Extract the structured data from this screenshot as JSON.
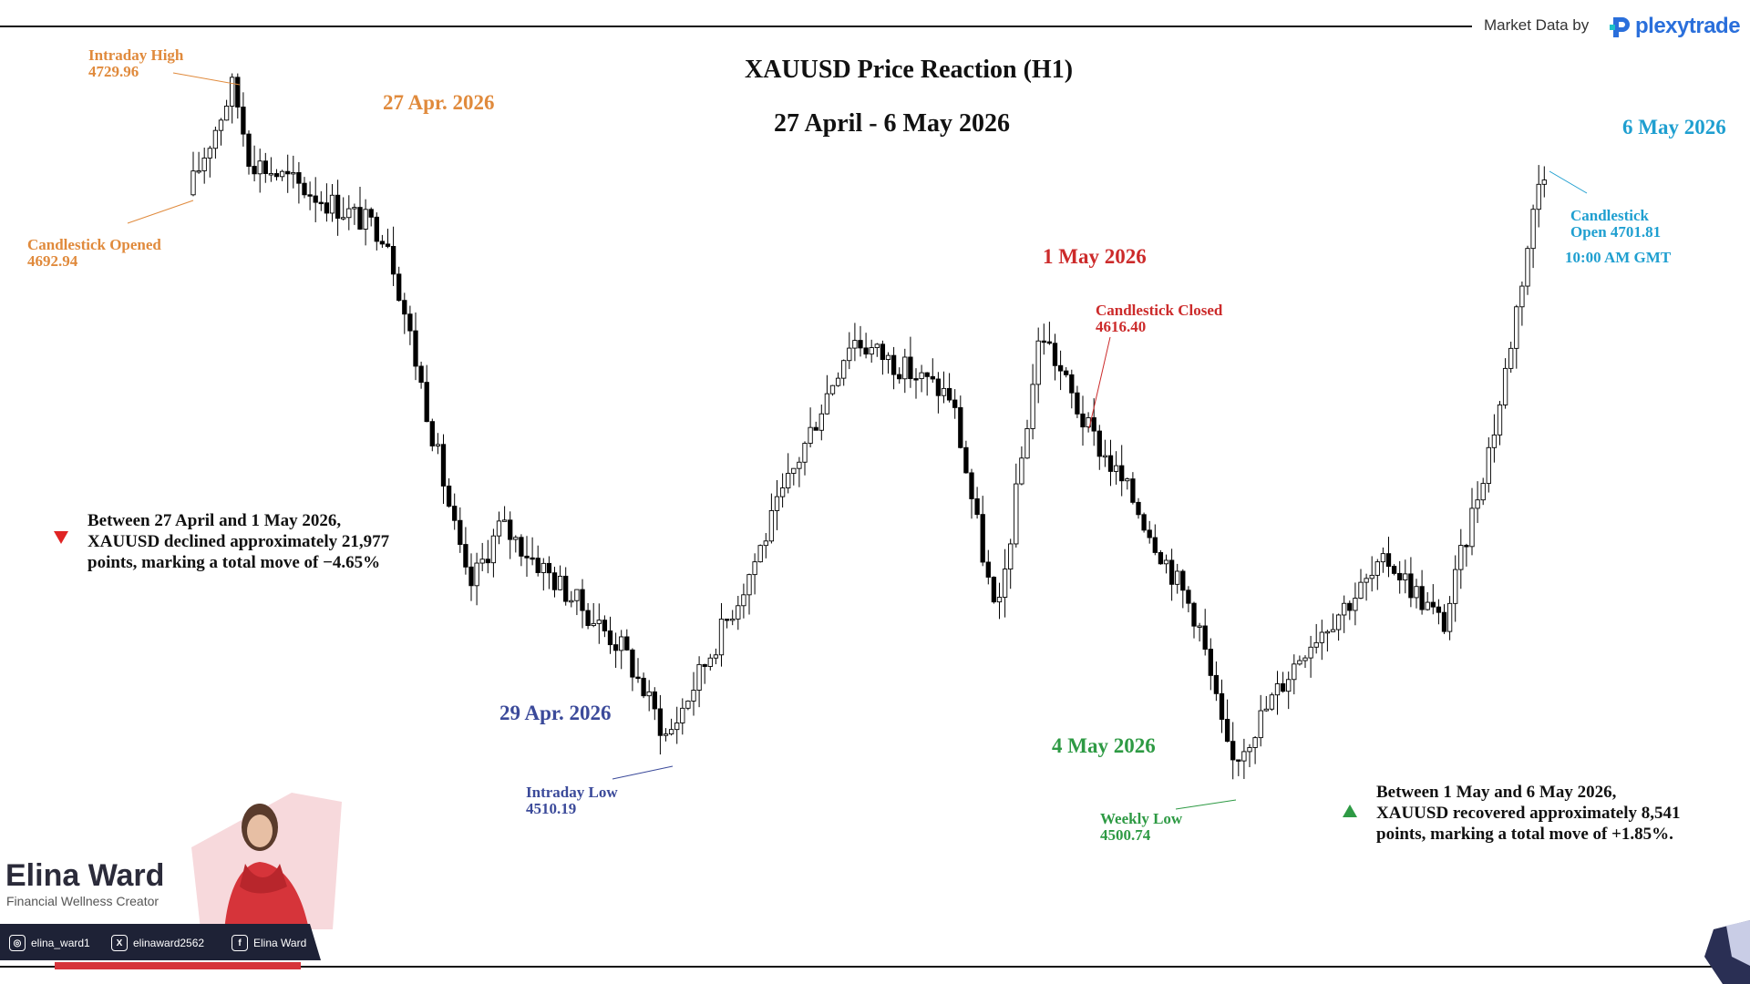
{
  "header": {
    "attribution": "Market Data by",
    "brand_name": "plexytrade",
    "title": "XAUUSD Price Reaction (H1)",
    "subtitle": "27 April - 6 May 2026"
  },
  "colors": {
    "orange": "#e08a3c",
    "navy": "#3b4a9a",
    "red": "#cc2b2b",
    "green": "#2e9a44",
    "cyan": "#1f9fd0",
    "brand_blue": "#2a6fdb",
    "up_candle": "#ffffff",
    "down_candle": "#000000"
  },
  "annotations": {
    "date_apr27": "27 Apr. 2026",
    "date_apr29": "29 Apr. 2026",
    "date_may1": "1 May 2026",
    "date_may4": "4 May 2026",
    "date_may6": "6 May 2026",
    "intraday_high_label": "Intraday High",
    "intraday_high_value": "4729.96",
    "candle_opened_label": "Candlestick Opened",
    "candle_opened_value": "4692.94",
    "intraday_low_label": "Intraday Low",
    "intraday_low_value": "4510.19",
    "candle_closed_label": "Candlestick Closed",
    "candle_closed_value": "4616.40",
    "weekly_low_label": "Weekly Low",
    "weekly_low_value": "4500.74",
    "candle_open_label": "Candlestick",
    "candle_open_value": "Open 4701.81",
    "candle_open_time": "10:00 AM GMT"
  },
  "summaries": {
    "decline_line1": "Between 27 April and 1 May 2026,",
    "decline_line2": "XAUUSD declined approximately 21,977",
    "decline_line3": "points, marking a total move of −4.65%",
    "recovery_line1": "Between 1 May and 6 May 2026,",
    "recovery_line2": "XAUUSD recovered approximately 8,541",
    "recovery_line3": "points, marking a total move of +1.85%."
  },
  "creator": {
    "name": "Elina Ward",
    "role": "Financial Wellness Creator",
    "instagram": "elina_ward1",
    "x_handle": "elinaward2562",
    "facebook": "Elina Ward"
  },
  "chart_data": {
    "type": "candlestick",
    "title": "XAUUSD Price Reaction (H1)",
    "subtitle": "27 April - 6 May 2026",
    "timeframe": "H1",
    "key_levels": {
      "intraday_high": 4729.96,
      "candlestick_opened": 4692.94,
      "intraday_low": 4510.19,
      "candlestick_closed": 4616.4,
      "weekly_low": 4500.74,
      "candlestick_open_may6": 4701.81
    },
    "waypoints": [
      {
        "date": "27 Apr",
        "price": 4692.94
      },
      {
        "date": "27 Apr",
        "price": 4729.96
      },
      {
        "date": "27 Apr",
        "price": 4705
      },
      {
        "date": "28 Apr",
        "price": 4680
      },
      {
        "date": "28 Apr",
        "price": 4560
      },
      {
        "date": "28 Apr",
        "price": 4582
      },
      {
        "date": "29 Apr",
        "price": 4540
      },
      {
        "date": "29 Apr",
        "price": 4510.19
      },
      {
        "date": "30 Apr",
        "price": 4560
      },
      {
        "date": "30 Apr",
        "price": 4645
      },
      {
        "date": "30 Apr",
        "price": 4625
      },
      {
        "date": "1 May",
        "price": 4548
      },
      {
        "date": "1 May",
        "price": 4648
      },
      {
        "date": "1 May",
        "price": 4616.4
      },
      {
        "date": "1 May",
        "price": 4590
      },
      {
        "date": "4 May",
        "price": 4550
      },
      {
        "date": "4 May",
        "price": 4500.74
      },
      {
        "date": "5 May",
        "price": 4542
      },
      {
        "date": "5 May",
        "price": 4570
      },
      {
        "date": "5 May",
        "price": 4548
      },
      {
        "date": "6 May",
        "price": 4620
      },
      {
        "date": "6 May",
        "price": 4701.81
      }
    ]
  }
}
